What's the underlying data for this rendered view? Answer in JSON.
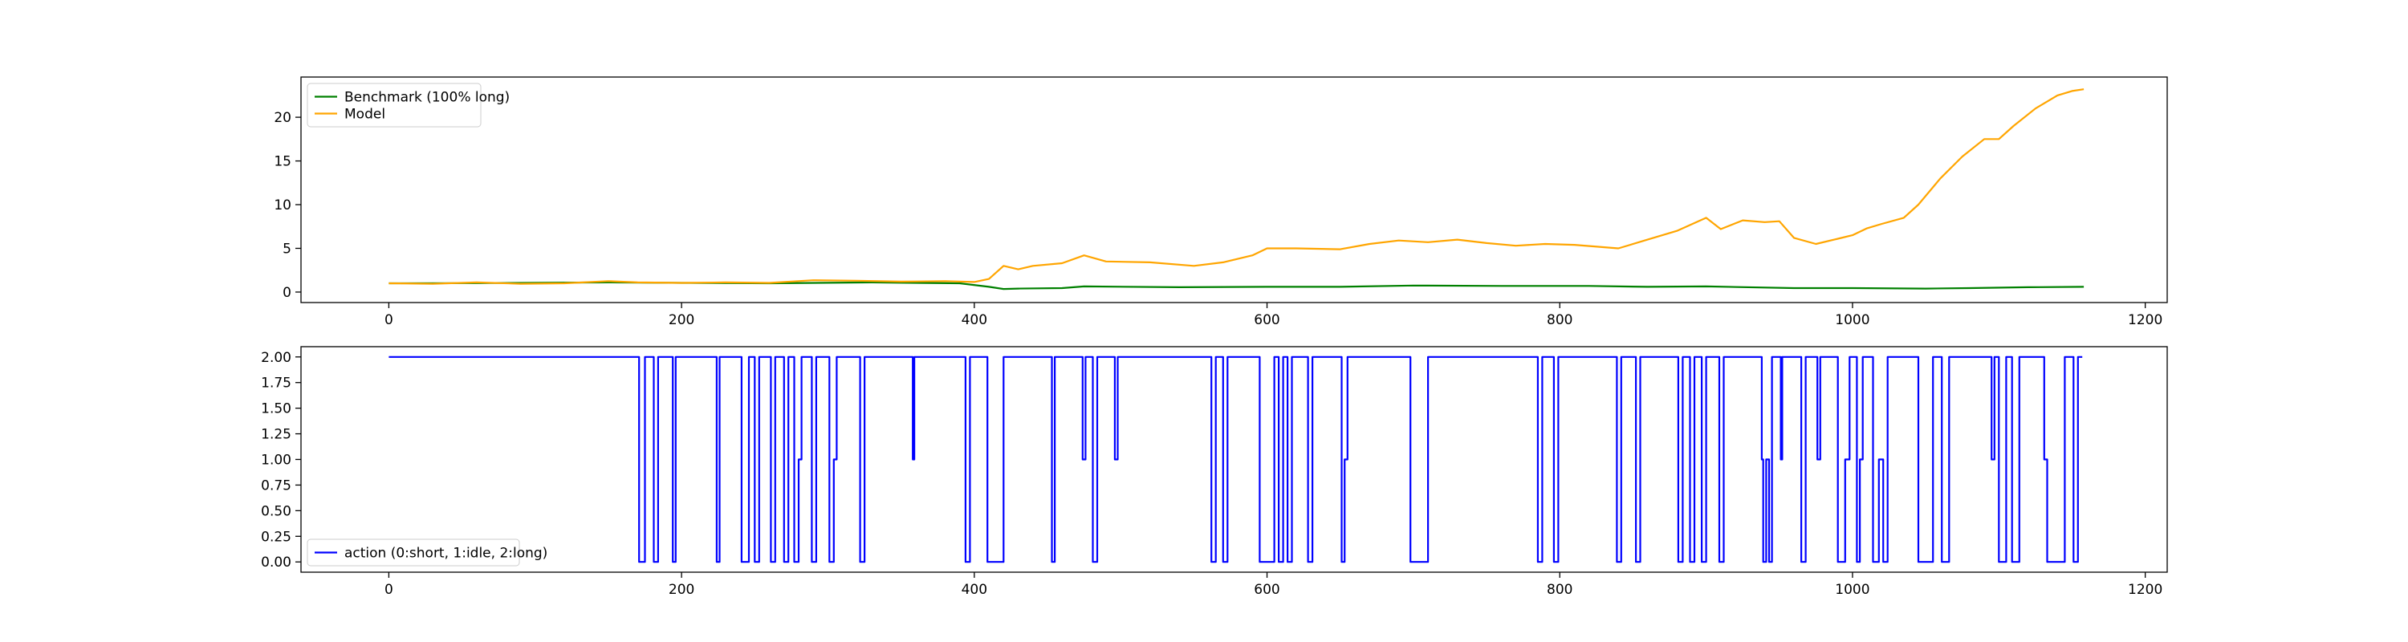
{
  "chart_data": [
    {
      "type": "line",
      "title": "",
      "xlabel": "",
      "ylabel": "",
      "xlim": [
        -60,
        1215
      ],
      "ylim": [
        -1.2,
        24.6
      ],
      "xticks": [
        0,
        200,
        400,
        600,
        800,
        1000,
        1200
      ],
      "yticks": [
        0,
        5,
        10,
        15,
        20
      ],
      "ytick_labels": [
        "0",
        "5",
        "10",
        "15",
        "20"
      ],
      "grid": false,
      "legend": "upper-left",
      "series": [
        {
          "name": "Benchmark (100% long)",
          "color": "#008000",
          "points": [
            [
              0,
              1.0
            ],
            [
              60,
              1.02
            ],
            [
              150,
              1.1
            ],
            [
              200,
              1.05
            ],
            [
              260,
              1.0
            ],
            [
              330,
              1.1
            ],
            [
              390,
              1.0
            ],
            [
              410,
              0.6
            ],
            [
              420,
              0.35
            ],
            [
              430,
              0.4
            ],
            [
              460,
              0.45
            ],
            [
              475,
              0.65
            ],
            [
              540,
              0.55
            ],
            [
              600,
              0.6
            ],
            [
              650,
              0.6
            ],
            [
              700,
              0.75
            ],
            [
              760,
              0.7
            ],
            [
              820,
              0.7
            ],
            [
              860,
              0.6
            ],
            [
              900,
              0.65
            ],
            [
              960,
              0.45
            ],
            [
              1000,
              0.45
            ],
            [
              1050,
              0.4
            ],
            [
              1080,
              0.45
            ],
            [
              1120,
              0.55
            ],
            [
              1158,
              0.6
            ]
          ]
        },
        {
          "name": "Model",
          "color": "#ffa500",
          "points": [
            [
              0,
              1.0
            ],
            [
              30,
              0.95
            ],
            [
              60,
              1.1
            ],
            [
              90,
              0.95
            ],
            [
              120,
              1.0
            ],
            [
              150,
              1.25
            ],
            [
              170,
              1.1
            ],
            [
              200,
              1.05
            ],
            [
              230,
              1.1
            ],
            [
              260,
              1.05
            ],
            [
              290,
              1.35
            ],
            [
              320,
              1.3
            ],
            [
              350,
              1.2
            ],
            [
              380,
              1.25
            ],
            [
              400,
              1.15
            ],
            [
              410,
              1.5
            ],
            [
              420,
              3.0
            ],
            [
              430,
              2.6
            ],
            [
              440,
              3.0
            ],
            [
              460,
              3.3
            ],
            [
              475,
              4.2
            ],
            [
              490,
              3.5
            ],
            [
              520,
              3.4
            ],
            [
              550,
              3.0
            ],
            [
              570,
              3.4
            ],
            [
              590,
              4.2
            ],
            [
              600,
              5.0
            ],
            [
              620,
              5.0
            ],
            [
              650,
              4.9
            ],
            [
              670,
              5.5
            ],
            [
              690,
              5.9
            ],
            [
              710,
              5.7
            ],
            [
              730,
              6.0
            ],
            [
              750,
              5.6
            ],
            [
              770,
              5.3
            ],
            [
              790,
              5.5
            ],
            [
              810,
              5.4
            ],
            [
              840,
              5.0
            ],
            [
              860,
              6.0
            ],
            [
              880,
              7.0
            ],
            [
              900,
              8.5
            ],
            [
              910,
              7.2
            ],
            [
              925,
              8.2
            ],
            [
              940,
              8.0
            ],
            [
              950,
              8.1
            ],
            [
              960,
              6.2
            ],
            [
              975,
              5.5
            ],
            [
              990,
              6.1
            ],
            [
              1000,
              6.5
            ],
            [
              1010,
              7.3
            ],
            [
              1020,
              7.8
            ],
            [
              1035,
              8.5
            ],
            [
              1045,
              10.0
            ],
            [
              1060,
              13.0
            ],
            [
              1075,
              15.5
            ],
            [
              1090,
              17.5
            ],
            [
              1100,
              17.5
            ],
            [
              1110,
              19.0
            ],
            [
              1125,
              21.0
            ],
            [
              1140,
              22.5
            ],
            [
              1150,
              23.0
            ],
            [
              1158,
              23.2
            ]
          ]
        }
      ]
    },
    {
      "type": "line",
      "title": "",
      "xlabel": "",
      "ylabel": "",
      "xlim": [
        -60,
        1215
      ],
      "ylim": [
        -0.1,
        2.1
      ],
      "xticks": [
        0,
        200,
        400,
        600,
        800,
        1000,
        1200
      ],
      "yticks": [
        0,
        0.25,
        0.5,
        0.75,
        1.0,
        1.25,
        1.5,
        1.75,
        2.0
      ],
      "ytick_labels": [
        "0.00",
        "0.25",
        "0.50",
        "0.75",
        "1.00",
        "1.25",
        "1.50",
        "1.75",
        "2.00"
      ],
      "grid": false,
      "legend": "lower-left",
      "series": [
        {
          "name": "action (0:short, 1:idle, 2:long)",
          "color": "#0000ff",
          "step": true,
          "points": [
            [
              0,
              2
            ],
            [
              170,
              2
            ],
            [
              171,
              0
            ],
            [
              175,
              2
            ],
            [
              180,
              2
            ],
            [
              181,
              0
            ],
            [
              184,
              2
            ],
            [
              193,
              2
            ],
            [
              194,
              0
            ],
            [
              196,
              2
            ],
            [
              223,
              2
            ],
            [
              224,
              0
            ],
            [
              226,
              2
            ],
            [
              240,
              2
            ],
            [
              241,
              0
            ],
            [
              246,
              2
            ],
            [
              249,
              2
            ],
            [
              250,
              0
            ],
            [
              253,
              2
            ],
            [
              260,
              2
            ],
            [
              261,
              0
            ],
            [
              264,
              2
            ],
            [
              269,
              2
            ],
            [
              270,
              0
            ],
            [
              273,
              2
            ],
            [
              276,
              2
            ],
            [
              277,
              0
            ],
            [
              280,
              1
            ],
            [
              282,
              2
            ],
            [
              288,
              2
            ],
            [
              289,
              0
            ],
            [
              292,
              2
            ],
            [
              300,
              2
            ],
            [
              301,
              0
            ],
            [
              304,
              1
            ],
            [
              306,
              2
            ],
            [
              321,
              2
            ],
            [
              322,
              0
            ],
            [
              325,
              2
            ],
            [
              357,
              2
            ],
            [
              358,
              1
            ],
            [
              359,
              2
            ],
            [
              393,
              2
            ],
            [
              394,
              0
            ],
            [
              397,
              2
            ],
            [
              408,
              2
            ],
            [
              409,
              0
            ],
            [
              420,
              2
            ],
            [
              452,
              2
            ],
            [
              453,
              0
            ],
            [
              455,
              2
            ],
            [
              473,
              2
            ],
            [
              474,
              1
            ],
            [
              476,
              2
            ],
            [
              480,
              2
            ],
            [
              481,
              0
            ],
            [
              484,
              2
            ],
            [
              495,
              2
            ],
            [
              496,
              1
            ],
            [
              498,
              2
            ],
            [
              561,
              2
            ],
            [
              562,
              0
            ],
            [
              565,
              2
            ],
            [
              569,
              2
            ],
            [
              570,
              0
            ],
            [
              573,
              2
            ],
            [
              594,
              2
            ],
            [
              595,
              0
            ],
            [
              605,
              2
            ],
            [
              607,
              2
            ],
            [
              608,
              0
            ],
            [
              611,
              2
            ],
            [
              613,
              2
            ],
            [
              614,
              0
            ],
            [
              617,
              2
            ],
            [
              627,
              2
            ],
            [
              628,
              0
            ],
            [
              631,
              2
            ],
            [
              650,
              2
            ],
            [
              651,
              0
            ],
            [
              653,
              1
            ],
            [
              655,
              2
            ],
            [
              697,
              2
            ],
            [
              698,
              0
            ],
            [
              710,
              2
            ],
            [
              784,
              2
            ],
            [
              785,
              0
            ],
            [
              788,
              2
            ],
            [
              795,
              2
            ],
            [
              796,
              0
            ],
            [
              799,
              2
            ],
            [
              838,
              2
            ],
            [
              839,
              0
            ],
            [
              842,
              2
            ],
            [
              851,
              2
            ],
            [
              852,
              0
            ],
            [
              855,
              2
            ],
            [
              880,
              2
            ],
            [
              881,
              0
            ],
            [
              884,
              2
            ],
            [
              888,
              2
            ],
            [
              889,
              0
            ],
            [
              892,
              2
            ],
            [
              896,
              2
            ],
            [
              897,
              0
            ],
            [
              900,
              2
            ],
            [
              908,
              2
            ],
            [
              909,
              0
            ],
            [
              912,
              2
            ],
            [
              937,
              2
            ],
            [
              938,
              1
            ],
            [
              939,
              0
            ],
            [
              941,
              1
            ],
            [
              943,
              0
            ],
            [
              945,
              2
            ],
            [
              950,
              2
            ],
            [
              951,
              1
            ],
            [
              952,
              2
            ],
            [
              964,
              2
            ],
            [
              965,
              0
            ],
            [
              968,
              2
            ],
            [
              975,
              2
            ],
            [
              976,
              1
            ],
            [
              978,
              2
            ],
            [
              989,
              2
            ],
            [
              990,
              0
            ],
            [
              995,
              1
            ],
            [
              998,
              2
            ],
            [
              1002,
              2
            ],
            [
              1003,
              0
            ],
            [
              1005,
              1
            ],
            [
              1007,
              2
            ],
            [
              1013,
              2
            ],
            [
              1014,
              0
            ],
            [
              1018,
              1
            ],
            [
              1021,
              0
            ],
            [
              1024,
              2
            ],
            [
              1044,
              2
            ],
            [
              1045,
              0
            ],
            [
              1055,
              2
            ],
            [
              1060,
              2
            ],
            [
              1061,
              0
            ],
            [
              1066,
              2
            ],
            [
              1094,
              2
            ],
            [
              1095,
              1
            ],
            [
              1097,
              2
            ],
            [
              1099,
              2
            ],
            [
              1100,
              0
            ],
            [
              1105,
              2
            ],
            [
              1108,
              2
            ],
            [
              1109,
              0
            ],
            [
              1114,
              2
            ],
            [
              1130,
              2
            ],
            [
              1131,
              1
            ],
            [
              1133,
              0
            ],
            [
              1145,
              2
            ],
            [
              1150,
              2
            ],
            [
              1151,
              0
            ],
            [
              1154,
              2
            ],
            [
              1157,
              2
            ]
          ]
        }
      ]
    }
  ]
}
